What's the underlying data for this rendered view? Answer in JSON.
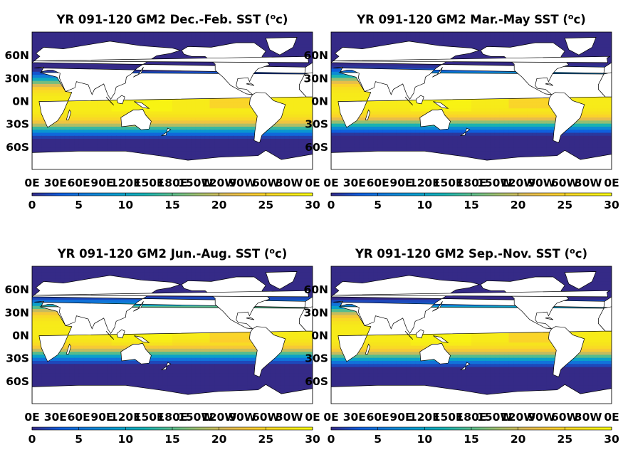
{
  "chart_data": [
    {
      "type": "heatmap",
      "title": "YR 091-120 GM2 Dec.-Feb. SST (",
      "title_unit_sup": "o",
      "title_unit_tail": "c)",
      "x_ticks": [
        "0E",
        "30E",
        "60E",
        "90E",
        "120E",
        "150E",
        "180E",
        "150W",
        "120W",
        "90W",
        "60W",
        "30W",
        "0E"
      ],
      "y_ticks": [
        "60N",
        "30N",
        "0N",
        "30S",
        "60S"
      ],
      "colorbar_ticks": [
        "0",
        "5",
        "10",
        "15",
        "20",
        "25",
        "30"
      ],
      "colorbar_range": [
        0,
        30
      ],
      "colormap": "parula",
      "land_color": "#ffffff",
      "season": "DJF",
      "field_summary": {
        "equator_max": 29,
        "polar_min": 0
      }
    },
    {
      "type": "heatmap",
      "title": "YR 091-120 GM2 Mar.-May SST (",
      "title_unit_sup": "o",
      "title_unit_tail": "c)",
      "x_ticks": [
        "0E",
        "30E",
        "60E",
        "90E",
        "120E",
        "150E",
        "180E",
        "150W",
        "120W",
        "90W",
        "60W",
        "30W",
        "0E"
      ],
      "y_ticks": [
        "60N",
        "30N",
        "0N",
        "30S",
        "60S"
      ],
      "colorbar_ticks": [
        "0",
        "5",
        "10",
        "15",
        "20",
        "25",
        "30"
      ],
      "colorbar_range": [
        0,
        30
      ],
      "colormap": "parula",
      "land_color": "#ffffff",
      "season": "MAM",
      "field_summary": {
        "equator_max": 29,
        "polar_min": 0
      }
    },
    {
      "type": "heatmap",
      "title": "YR 091-120 GM2 Jun.-Aug. SST (",
      "title_unit_sup": "o",
      "title_unit_tail": "c)",
      "x_ticks": [
        "0E",
        "30E",
        "60E",
        "90E",
        "120E",
        "150E",
        "180E",
        "150W",
        "120W",
        "90W",
        "60W",
        "30W",
        "0E"
      ],
      "y_ticks": [
        "60N",
        "30N",
        "0N",
        "30S",
        "60S"
      ],
      "colorbar_ticks": [
        "0",
        "5",
        "10",
        "15",
        "20",
        "25",
        "30"
      ],
      "colorbar_range": [
        0,
        30
      ],
      "colormap": "parula",
      "land_color": "#ffffff",
      "season": "JJA",
      "field_summary": {
        "equator_max": 29,
        "polar_min": 0
      }
    },
    {
      "type": "heatmap",
      "title": "YR 091-120 GM2 Sep.-Nov. SST (",
      "title_unit_sup": "o",
      "title_unit_tail": "c)",
      "x_ticks": [
        "0E",
        "30E",
        "60E",
        "90E",
        "120E",
        "150E",
        "180E",
        "150W",
        "120W",
        "90W",
        "60W",
        "30W",
        "0E"
      ],
      "y_ticks": [
        "60N",
        "30N",
        "0N",
        "30S",
        "60S"
      ],
      "colorbar_ticks": [
        "0",
        "5",
        "10",
        "15",
        "20",
        "25",
        "30"
      ],
      "colorbar_range": [
        0,
        30
      ],
      "colormap": "parula",
      "land_color": "#ffffff",
      "season": "SON",
      "field_summary": {
        "equator_max": 29,
        "polar_min": 0
      }
    }
  ]
}
